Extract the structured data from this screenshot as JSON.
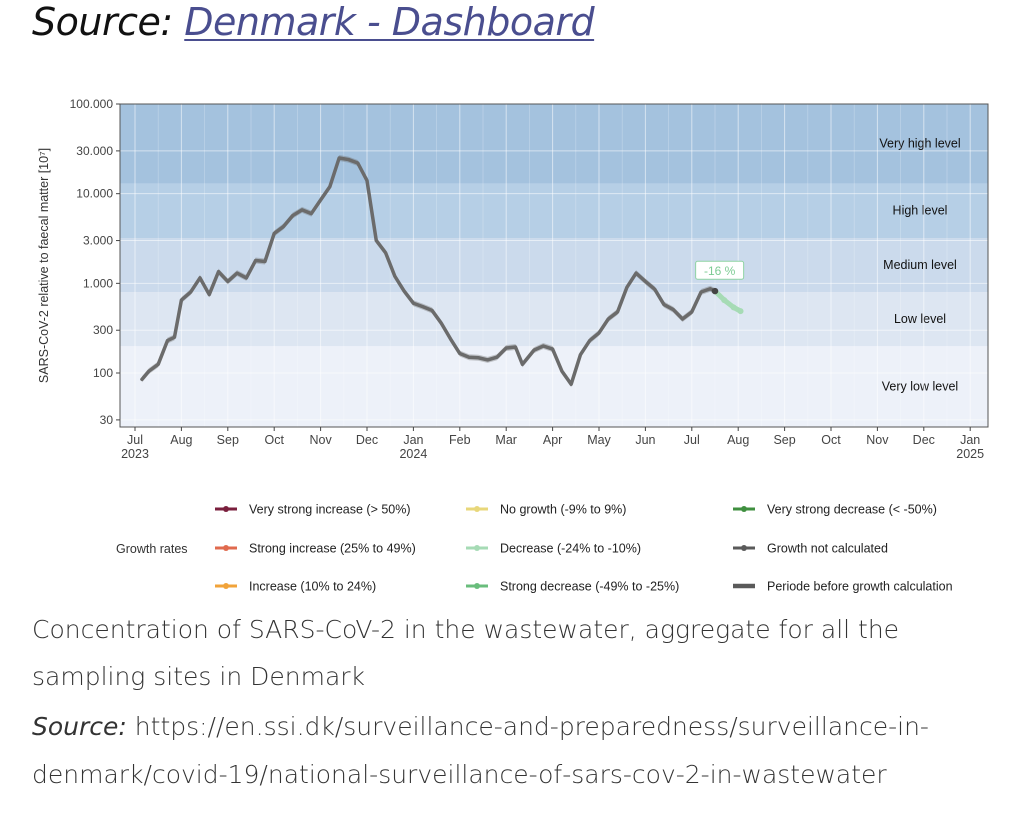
{
  "header": {
    "source_prefix": "Source:",
    "source_link": "Denmark - Dashboard"
  },
  "caption": {
    "line1": "Concentration of SARS-CoV-2 in the wastewater, aggregate for all the",
    "line2": "sampling sites in Denmark",
    "source_label": "Source:",
    "source_url_line1": " https://en.ssi.dk/surveillance-and-preparedness/surveillance-in-",
    "source_url_line2": "denmark/covid-19/national-surveillance-of-sars-cov-2-in-wastewater"
  },
  "chart_data": {
    "type": "line",
    "ylabel": "SARS-CoV-2 relative to faecal matter [10⁷]",
    "y_scale": "log",
    "ylim": [
      25,
      100000
    ],
    "y_ticks": [
      {
        "value": 30,
        "label": "30"
      },
      {
        "value": 100,
        "label": "100"
      },
      {
        "value": 300,
        "label": "300"
      },
      {
        "value": 1000,
        "label": "1.000"
      },
      {
        "value": 3000,
        "label": "3.000"
      },
      {
        "value": 10000,
        "label": "10.000"
      },
      {
        "value": 30000,
        "label": "30.000"
      },
      {
        "value": 100000,
        "label": "100.000"
      }
    ],
    "xlim": [
      0,
      19.2
    ],
    "x_ticks": [
      {
        "value": 0,
        "label": "Jul",
        "year": "2023"
      },
      {
        "value": 1,
        "label": "Aug",
        "year": ""
      },
      {
        "value": 2,
        "label": "Sep",
        "year": ""
      },
      {
        "value": 3,
        "label": "Oct",
        "year": ""
      },
      {
        "value": 4,
        "label": "Nov",
        "year": ""
      },
      {
        "value": 5,
        "label": "Dec",
        "year": ""
      },
      {
        "value": 6,
        "label": "Jan",
        "year": "2024"
      },
      {
        "value": 7,
        "label": "Feb",
        "year": ""
      },
      {
        "value": 8,
        "label": "Mar",
        "year": ""
      },
      {
        "value": 9,
        "label": "Apr",
        "year": ""
      },
      {
        "value": 10,
        "label": "May",
        "year": ""
      },
      {
        "value": 11,
        "label": "Jun",
        "year": ""
      },
      {
        "value": 12,
        "label": "Jul",
        "year": ""
      },
      {
        "value": 13,
        "label": "Aug",
        "year": ""
      },
      {
        "value": 14,
        "label": "Sep",
        "year": ""
      },
      {
        "value": 15,
        "label": "Oct",
        "year": ""
      },
      {
        "value": 16,
        "label": "Nov",
        "year": ""
      },
      {
        "value": 17,
        "label": "Dec",
        "year": ""
      },
      {
        "value": 18,
        "label": "Jan",
        "year": "2025"
      }
    ],
    "bands": [
      {
        "label": "Very low level",
        "from": 25,
        "to": 200,
        "color": "#edf1f9"
      },
      {
        "label": "Low level",
        "from": 200,
        "to": 800,
        "color": "#dde6f2"
      },
      {
        "label": "Medium level",
        "from": 800,
        "to": 3200,
        "color": "#cbdaec"
      },
      {
        "label": "High level",
        "from": 3200,
        "to": 13000,
        "color": "#b6cfe6"
      },
      {
        "label": "Very high level",
        "from": 13000,
        "to": 100000,
        "color": "#a4c2de"
      }
    ],
    "series": [
      {
        "color": "#6b6b6b",
        "points": [
          [
            0.15,
            85
          ],
          [
            0.3,
            105
          ],
          [
            0.5,
            125
          ],
          [
            0.7,
            230
          ],
          [
            0.85,
            250
          ],
          [
            1.0,
            650
          ],
          [
            1.2,
            800
          ],
          [
            1.4,
            1150
          ],
          [
            1.6,
            750
          ],
          [
            1.8,
            1350
          ],
          [
            2.0,
            1050
          ],
          [
            2.2,
            1300
          ],
          [
            2.4,
            1150
          ],
          [
            2.6,
            1800
          ],
          [
            2.8,
            1750
          ],
          [
            3.0,
            3600
          ],
          [
            3.2,
            4300
          ],
          [
            3.4,
            5700
          ],
          [
            3.6,
            6600
          ],
          [
            3.8,
            6000
          ],
          [
            4.0,
            8500
          ],
          [
            4.2,
            12000
          ],
          [
            4.4,
            25000
          ],
          [
            4.6,
            24000
          ],
          [
            4.8,
            22000
          ],
          [
            5.0,
            14000
          ],
          [
            5.2,
            3000
          ],
          [
            5.4,
            2200
          ],
          [
            5.6,
            1200
          ],
          [
            5.8,
            820
          ],
          [
            6.0,
            600
          ],
          [
            6.2,
            550
          ],
          [
            6.4,
            500
          ],
          [
            6.6,
            360
          ],
          [
            6.8,
            240
          ],
          [
            7.0,
            165
          ],
          [
            7.2,
            150
          ],
          [
            7.4,
            148
          ],
          [
            7.6,
            140
          ],
          [
            7.8,
            150
          ],
          [
            8.0,
            190
          ],
          [
            8.2,
            195
          ],
          [
            8.35,
            125
          ],
          [
            8.6,
            180
          ],
          [
            8.8,
            200
          ],
          [
            9.0,
            185
          ],
          [
            9.2,
            105
          ],
          [
            9.4,
            75
          ],
          [
            9.6,
            160
          ],
          [
            9.8,
            230
          ],
          [
            10.0,
            280
          ],
          [
            10.2,
            400
          ],
          [
            10.4,
            480
          ],
          [
            10.6,
            900
          ],
          [
            10.8,
            1300
          ],
          [
            11.0,
            1050
          ],
          [
            11.2,
            860
          ],
          [
            11.4,
            580
          ],
          [
            11.6,
            510
          ],
          [
            11.8,
            400
          ],
          [
            12.0,
            480
          ],
          [
            12.2,
            800
          ],
          [
            12.4,
            870
          ],
          [
            12.5,
            820
          ]
        ]
      },
      {
        "color": "#a6dbb5",
        "points": [
          [
            12.5,
            820
          ],
          [
            12.7,
            650
          ],
          [
            12.9,
            540
          ],
          [
            13.05,
            490
          ]
        ]
      }
    ],
    "annotation": {
      "text": "-16 %",
      "x": 12.6,
      "y": 1400,
      "color": "#8fd3a3"
    },
    "legend": {
      "title": "Growth rates",
      "position": "bottom",
      "items": [
        {
          "label": "Very strong increase (> 50%)",
          "color": "#7a1f3d"
        },
        {
          "label": "No growth (-9% to 9%)",
          "color": "#e8d77a"
        },
        {
          "label": "Very strong decrease (< -50%)",
          "color": "#3f8f3f"
        },
        {
          "label": "Strong increase (25% to 49%)",
          "color": "#e06a4e"
        },
        {
          "label": "Decrease (-24% to -10%)",
          "color": "#a6dbb5"
        },
        {
          "label": "Growth not calculated",
          "color": "#5a5a5a"
        },
        {
          "label": "Increase (10% to 24%)",
          "color": "#f1a33a"
        },
        {
          "label": "Strong decrease (-49% to -25%)",
          "color": "#69bd7c"
        },
        {
          "label": "Periode before growth calculation",
          "color": "#5a5a5a",
          "thick": true
        }
      ]
    }
  }
}
